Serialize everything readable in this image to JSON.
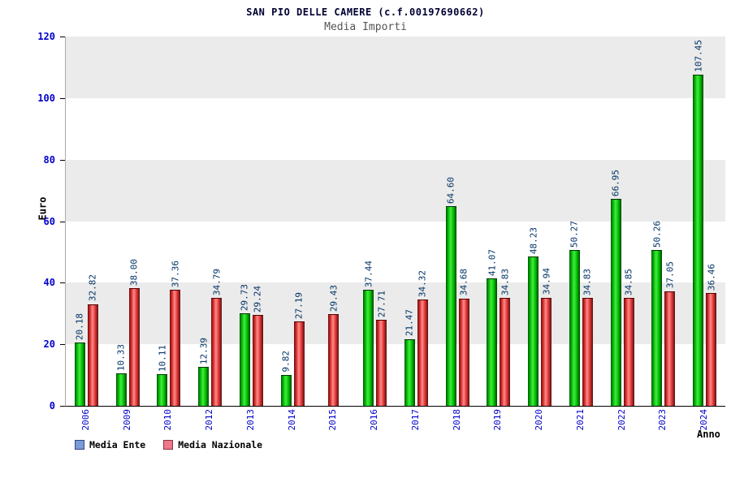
{
  "title": "SAN PIO DELLE CAMERE (c.f.00197690662)",
  "subtitle": "Media Importi",
  "ylabel": "Euro",
  "xlabel": "Anno",
  "legend": [
    {
      "label": "Media Ente",
      "swatch": "#7a9bd4",
      "swatch_border": "#334488"
    },
    {
      "label": "Media Nazionale",
      "swatch": "#ee7788",
      "swatch_border": "#883344"
    }
  ],
  "chart_data": {
    "type": "bar",
    "title": "Media Importi",
    "xlabel": "Anno",
    "ylabel": "Euro",
    "ylim": [
      0,
      120
    ],
    "yticks": [
      0,
      20,
      40,
      60,
      80,
      100,
      120
    ],
    "grid": true,
    "legend_position": "bottom-left",
    "categories": [
      "2006",
      "2009",
      "2010",
      "2012",
      "2013",
      "2014",
      "2015",
      "2016",
      "2017",
      "2018",
      "2019",
      "2020",
      "2021",
      "2022",
      "2023",
      "2024"
    ],
    "series": [
      {
        "name": "Media Ente",
        "color": "green",
        "values": [
          20.18,
          10.33,
          10.11,
          12.39,
          29.73,
          9.82,
          null,
          37.44,
          21.47,
          64.6,
          41.07,
          48.23,
          50.27,
          66.95,
          50.26,
          107.45
        ]
      },
      {
        "name": "Media Nazionale",
        "color": "red",
        "values": [
          32.82,
          38.0,
          37.36,
          34.79,
          29.24,
          27.19,
          29.43,
          27.71,
          34.32,
          34.68,
          34.83,
          34.94,
          34.83,
          34.85,
          37.05,
          36.46
        ]
      }
    ]
  }
}
